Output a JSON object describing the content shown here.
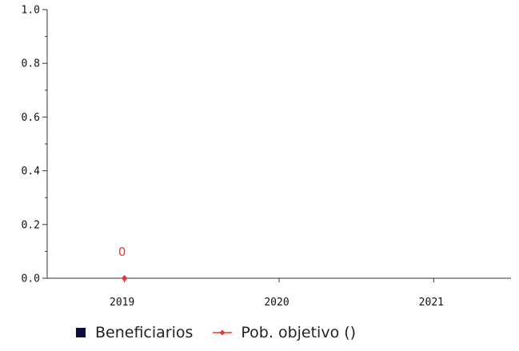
{
  "chart_data": {
    "type": "line",
    "categories": [
      "2019",
      "2020",
      "2021"
    ],
    "ylim": [
      0,
      1
    ],
    "yticks": [
      "0.0",
      "0.2",
      "0.4",
      "0.6",
      "0.8",
      "1.0"
    ],
    "series": [
      {
        "name": "Beneficiarios",
        "kind": "bar",
        "color": "#0d0d3d",
        "values": [
          null,
          null,
          null
        ]
      },
      {
        "name": "Pob. objetivo ()",
        "kind": "line",
        "color": "#e53935",
        "values": [
          0,
          null,
          null
        ],
        "data_labels": [
          "0",
          "",
          ""
        ]
      }
    ],
    "legend_position": "bottom"
  }
}
